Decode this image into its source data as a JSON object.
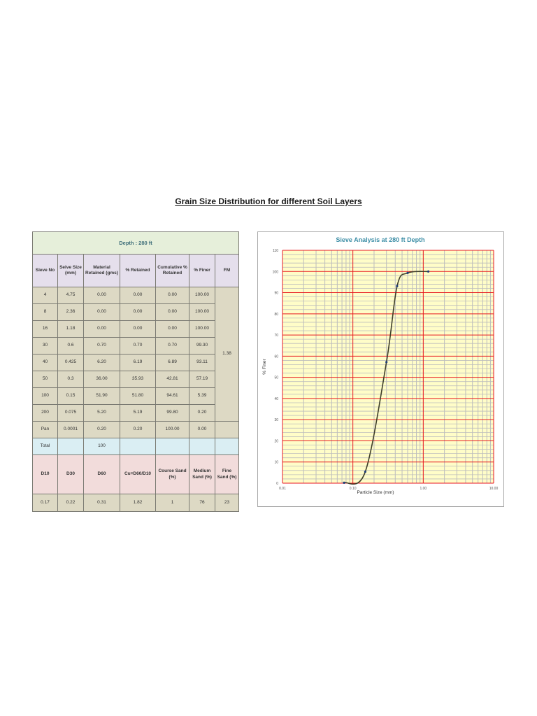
{
  "page": {
    "title": "Grain Size Distribution for different Soil Layers"
  },
  "table": {
    "depth_label": "Depth : 280 ft",
    "columns": [
      "Sieve No",
      "Seive Size (mm)",
      "Material Retained (gms)",
      "% Retained",
      "Cumulative % Retained",
      "% Finer",
      "FM"
    ],
    "rows": [
      {
        "sieve_no": "4",
        "size": "4.75",
        "retained_g": "0.00",
        "pct_retained": "0.00",
        "cum_retained": "0.00",
        "pct_finer": "100.00"
      },
      {
        "sieve_no": "8",
        "size": "2.36",
        "retained_g": "0.00",
        "pct_retained": "0.00",
        "cum_retained": "0.00",
        "pct_finer": "100.00"
      },
      {
        "sieve_no": "16",
        "size": "1.18",
        "retained_g": "0.00",
        "pct_retained": "0.00",
        "cum_retained": "0.00",
        "pct_finer": "100.00"
      },
      {
        "sieve_no": "30",
        "size": "0.6",
        "retained_g": "0.70",
        "pct_retained": "0.70",
        "cum_retained": "0.70",
        "pct_finer": "99.30"
      },
      {
        "sieve_no": "40",
        "size": "0.425",
        "retained_g": "6.20",
        "pct_retained": "6.19",
        "cum_retained": "6.89",
        "pct_finer": "93.11"
      },
      {
        "sieve_no": "50",
        "size": "0.3",
        "retained_g": "36.00",
        "pct_retained": "35.93",
        "cum_retained": "42.81",
        "pct_finer": "57.19"
      },
      {
        "sieve_no": "100",
        "size": "0.15",
        "retained_g": "51.90",
        "pct_retained": "51.80",
        "cum_retained": "94.61",
        "pct_finer": "5.39"
      },
      {
        "sieve_no": "200",
        "size": "0.075",
        "retained_g": "5.20",
        "pct_retained": "5.19",
        "cum_retained": "99.80",
        "pct_finer": "0.20"
      },
      {
        "sieve_no": "Pan",
        "size": "0.0001",
        "retained_g": "0.20",
        "pct_retained": "0.20",
        "cum_retained": "100.00",
        "pct_finer": "0.00"
      }
    ],
    "fm_value": "1.38",
    "total_label": "Total",
    "total_value": "100",
    "summary_headers": [
      "D10",
      "D30",
      "D60",
      "Cu=D60/D10",
      "Course Sand (%)",
      "Medium Sand (%)",
      "Fine Sand (%)"
    ],
    "summary_values": [
      "0.17",
      "0.22",
      "0.31",
      "1.82",
      "1",
      "76",
      "23"
    ]
  },
  "chart_data": {
    "type": "line",
    "title": "Sieve Analysis at 280 ft Depth",
    "xlabel": "Particle Size (mm)",
    "ylabel": "% Finer",
    "xscale": "log",
    "xlim": [
      0.01,
      10
    ],
    "ylim": [
      0,
      110
    ],
    "x_ticks": [
      "0.01",
      "0.10",
      "1.00",
      "10.00"
    ],
    "y_ticks": [
      "0",
      "10",
      "20",
      "30",
      "40",
      "50",
      "60",
      "70",
      "80",
      "90",
      "100",
      "110"
    ],
    "grid": true,
    "series": [
      {
        "name": "% Finer",
        "x": [
          0.075,
          0.15,
          0.3,
          0.425,
          0.6,
          1.18
        ],
        "y": [
          0.2,
          5.39,
          57.19,
          93.11,
          99.3,
          100
        ]
      }
    ],
    "colors": {
      "plot_bg": "#fffdc8",
      "major_grid": "#e8191f",
      "minor_grid": "#bdbdbd",
      "line": "#3f3f2a",
      "marker": "#1f3d7a",
      "title": "#3d8ea6"
    }
  }
}
